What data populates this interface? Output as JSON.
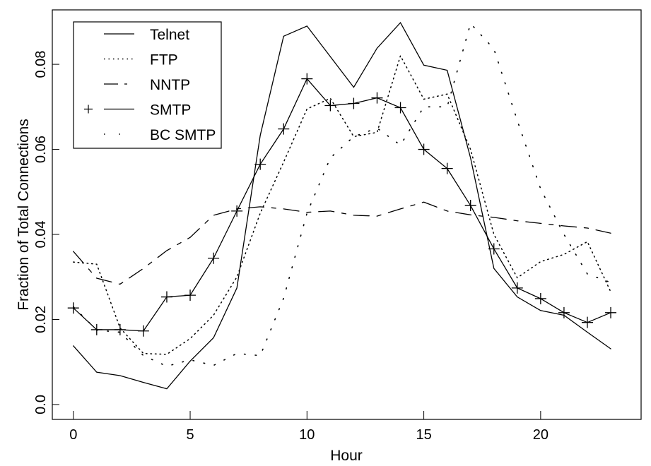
{
  "chart_data": {
    "type": "line",
    "title": "",
    "xlabel": "Hour",
    "ylabel": "Fraction of Total Connections",
    "xlim": [
      -0.9,
      24.3
    ],
    "ylim": [
      -0.0035,
      0.0928
    ],
    "xticks": [
      0,
      5,
      10,
      15,
      20
    ],
    "xtick_labels": [
      "0",
      "5",
      "10",
      "15",
      "20"
    ],
    "yticks": [
      0.0,
      0.02,
      0.04,
      0.06,
      0.08
    ],
    "ytick_labels": [
      "0.0",
      "0.02",
      "0.04",
      "0.06",
      "0.08"
    ],
    "grid": false,
    "legend_position": "top-left",
    "x": [
      0,
      1,
      2,
      3,
      4,
      5,
      6,
      7,
      8,
      9,
      10,
      11,
      12,
      13,
      14,
      15,
      16,
      17,
      18,
      19,
      20,
      21,
      22,
      23
    ],
    "series": [
      {
        "name": "Telnet",
        "style": "solid",
        "values": [
          0.0138,
          0.0076,
          0.0068,
          0.0052,
          0.0037,
          0.0102,
          0.0157,
          0.0274,
          0.0633,
          0.0866,
          0.089,
          0.0818,
          0.0746,
          0.0838,
          0.0898,
          0.0798,
          0.0786,
          0.058,
          0.032,
          0.0253,
          0.0221,
          0.021,
          0.017,
          0.0131
        ]
      },
      {
        "name": "FTP",
        "style": "dotted",
        "values": [
          0.0335,
          0.033,
          0.018,
          0.012,
          0.0118,
          0.0155,
          0.021,
          0.03,
          0.045,
          0.057,
          0.0695,
          0.072,
          0.063,
          0.064,
          0.082,
          0.0718,
          0.073,
          0.06,
          0.04,
          0.0298,
          0.0336,
          0.0353,
          0.0383,
          0.0265
        ]
      },
      {
        "name": "NNTP",
        "style": "dashed",
        "values": [
          0.036,
          0.0297,
          0.0283,
          0.032,
          0.0362,
          0.0393,
          0.0445,
          0.046,
          0.0465,
          0.046,
          0.0452,
          0.0455,
          0.0445,
          0.0443,
          0.046,
          0.0476,
          0.0455,
          0.0446,
          0.044,
          0.0432,
          0.0426,
          0.042,
          0.0415,
          0.0403
        ]
      },
      {
        "name": "SMTP",
        "style": "solid-plus",
        "values": [
          0.0227,
          0.0176,
          0.0176,
          0.0173,
          0.0253,
          0.0257,
          0.0344,
          0.0455,
          0.0565,
          0.0648,
          0.0766,
          0.0703,
          0.0708,
          0.0721,
          0.0698,
          0.06,
          0.0555,
          0.0468,
          0.0366,
          0.0274,
          0.0249,
          0.0216,
          0.0193,
          0.0216
        ]
      },
      {
        "name": "BC SMTP",
        "style": "sparse-dotted",
        "values": [
          0.023,
          0.0175,
          0.017,
          0.0115,
          0.009,
          0.0105,
          0.0092,
          0.012,
          0.0115,
          0.025,
          0.045,
          0.058,
          0.063,
          0.065,
          0.061,
          0.07,
          0.07,
          0.0896,
          0.0836,
          0.0668,
          0.0507,
          0.04,
          0.0307,
          0.0287
        ]
      }
    ]
  }
}
